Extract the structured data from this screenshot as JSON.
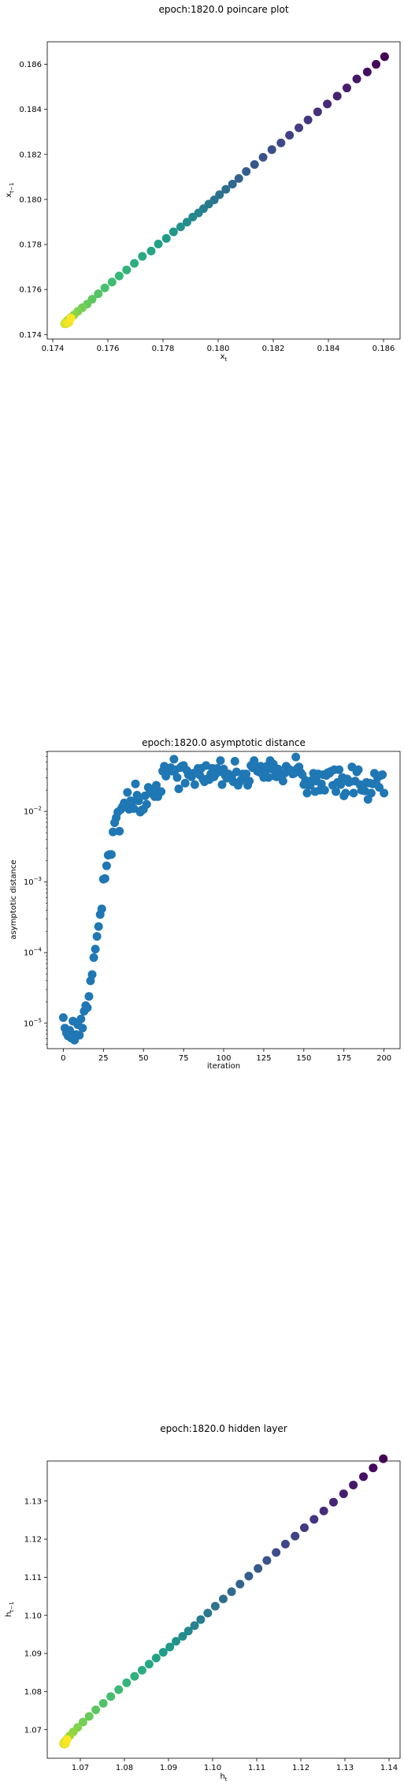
{
  "chart_data": [
    {
      "type": "scatter",
      "title": "epoch:1820.0 poincare plot",
      "xlabel": "x_t",
      "ylabel": "x_{t-1}",
      "xlim": [
        0.1738,
        0.1866
      ],
      "ylim": [
        0.1738,
        0.187
      ],
      "xticks": [
        "0.174",
        "0.176",
        "0.178",
        "0.180",
        "0.182",
        "0.184",
        "0.186"
      ],
      "yticks": [
        "0.174",
        "0.176",
        "0.178",
        "0.180",
        "0.182",
        "0.184",
        "0.186"
      ],
      "color_scale": "viridis (early iterations dark purple, late iterations yellow)",
      "series": [
        {
          "x": [
            0.18604,
            0.18573,
            0.18541,
            0.18503,
            0.18467,
            0.18432,
            0.18396,
            0.18361,
            0.18326,
            0.18293,
            0.18259,
            0.18228,
            0.18195,
            0.18163,
            0.18132,
            0.18102,
            0.18075,
            0.18052,
            0.18028,
            0.18005,
            0.17986,
            0.17966,
            0.17947,
            0.17929,
            0.17908,
            0.17887,
            0.17864,
            0.17838,
            0.17812,
            0.17783,
            0.17757,
            0.17725,
            0.17696,
            0.17668,
            0.17641,
            0.17615,
            0.17589,
            0.17565,
            0.17543,
            0.17525,
            0.17507,
            0.17491,
            0.17477,
            0.17465,
            0.17456,
            0.17449,
            0.17445,
            0.17443,
            0.17447,
            0.17453,
            0.17459,
            0.17466
          ],
          "y": [
            0.18634,
            0.186,
            0.18566,
            0.18535,
            0.18495,
            0.18459,
            0.18424,
            0.18389,
            0.18353,
            0.18318,
            0.18285,
            0.18251,
            0.18221,
            0.18187,
            0.18155,
            0.18124,
            0.18093,
            0.18068,
            0.18045,
            0.18021,
            0.17998,
            0.17979,
            0.17959,
            0.1794,
            0.17922,
            0.17899,
            0.17878,
            0.17856,
            0.17827,
            0.17802,
            0.17771,
            0.17747,
            0.17716,
            0.17687,
            0.1766,
            0.17633,
            0.17607,
            0.17581,
            0.17557,
            0.17535,
            0.17519,
            0.17503,
            0.17487,
            0.17475,
            0.17465,
            0.17457,
            0.17451,
            0.17448,
            0.17448,
            0.17451,
            0.17454,
            0.17473
          ]
        }
      ]
    },
    {
      "type": "scatter",
      "title": "epoch:1820.0 asymptotic distance",
      "xlabel": "iteration",
      "ylabel": "asymptotic distance",
      "yscale": "log",
      "xlim": [
        -10,
        210
      ],
      "ylim_log10": [
        -5.36,
        -1.15
      ],
      "xticks": [
        "0",
        "25",
        "50",
        "75",
        "100",
        "125",
        "150",
        "175",
        "200"
      ],
      "yticks": [
        "10^-5",
        "10^-4",
        "10^-3",
        "10^-2"
      ],
      "color": "#1f77b4",
      "series": [
        {
          "x": [
            0,
            1,
            2,
            3,
            4,
            5,
            6,
            7,
            8,
            9,
            10,
            11,
            12,
            13,
            14,
            15,
            16,
            17,
            18,
            19,
            20,
            21,
            22,
            23,
            24,
            25,
            26,
            27,
            28,
            29,
            30,
            31,
            32,
            33,
            34,
            35,
            36,
            37,
            38,
            39,
            40,
            41,
            42,
            43,
            44,
            45,
            46,
            47,
            48,
            49,
            50,
            51,
            52,
            53,
            54,
            55,
            56,
            57,
            58,
            59,
            60,
            61,
            62,
            63,
            64,
            65,
            66,
            67,
            68,
            69,
            70,
            71,
            72,
            73,
            74,
            75,
            76,
            77,
            78,
            79,
            80,
            81,
            82,
            83,
            84,
            85,
            86,
            87,
            88,
            89,
            90,
            91,
            92,
            93,
            94,
            95,
            96,
            97,
            98,
            99,
            100,
            101,
            102,
            103,
            104,
            105,
            106,
            107,
            108,
            109,
            110,
            111,
            112,
            113,
            114,
            115,
            116,
            117,
            118,
            119,
            120,
            121,
            122,
            123,
            124,
            125,
            126,
            127,
            128,
            129,
            130,
            131,
            132,
            133,
            134,
            135,
            136,
            137,
            138,
            139,
            140,
            141,
            142,
            143,
            144,
            145,
            146,
            147,
            148,
            149,
            150,
            151,
            152,
            153,
            154,
            155,
            156,
            157,
            158,
            159,
            160,
            161,
            162,
            163,
            164,
            165,
            166,
            167,
            168,
            169,
            170,
            171,
            172,
            173,
            174,
            175,
            176,
            177,
            178,
            179,
            180,
            181,
            182,
            183,
            184,
            185,
            186,
            187,
            188,
            189,
            190,
            191,
            192,
            193,
            194,
            195,
            196,
            197,
            198,
            199,
            200
          ],
          "log10_y": [
            -4.92,
            -5.07,
            -5.14,
            -5.18,
            -5.1,
            -5.21,
            -4.97,
            -5.24,
            -5.16,
            -5.02,
            -5.17,
            -4.94,
            -5.07,
            -4.83,
            -4.75,
            -4.78,
            -4.62,
            -4.4,
            -4.31,
            -4.07,
            -3.95,
            -3.77,
            -3.63,
            -3.46,
            -3.38,
            -2.96,
            -2.95,
            -2.77,
            -2.62,
            -2.61,
            -2.61,
            -2.29,
            -2.16,
            -2.09,
            -2.01,
            -2.28,
            -1.97,
            -1.93,
            -1.88,
            -1.92,
            -1.73,
            -1.97,
            -1.85,
            -1.86,
            -1.96,
            -1.61,
            -1.77,
            -1.85,
            -2.01,
            -1.98,
            -1.97,
            -1.78,
            -1.9,
            -1.66,
            -1.74,
            -1.73,
            -1.7,
            -1.79,
            -1.63,
            -1.79,
            -1.73,
            -1.72,
            -1.43,
            -1.36,
            -1.5,
            -1.4,
            -1.42,
            -1.38,
            -1.43,
            -1.26,
            -1.41,
            -1.52,
            -1.68,
            -1.38,
            -1.36,
            -1.35,
            -1.6,
            -1.42,
            -1.48,
            -1.48,
            -1.51,
            -1.46,
            -1.62,
            -1.45,
            -1.39,
            -1.48,
            -1.39,
            -1.54,
            -1.58,
            -1.35,
            -1.54,
            -1.55,
            -1.47,
            -1.39,
            -1.51,
            -1.47,
            -1.39,
            -1.44,
            -1.28,
            -1.62,
            -1.4,
            -1.49,
            -1.53,
            -1.47,
            -1.49,
            -1.52,
            -1.58,
            -1.29,
            -1.44,
            -1.63,
            -1.58,
            -1.55,
            -1.47,
            -1.49,
            -1.47,
            -1.63,
            -1.57,
            -1.35,
            -1.38,
            -1.28,
            -1.36,
            -1.43,
            -1.44,
            -1.36,
            -1.47,
            -1.52,
            -1.43,
            -1.36,
            -1.52,
            -1.28,
            -1.4,
            -1.33,
            -1.5,
            -1.51,
            -1.4,
            -1.45,
            -1.47,
            -1.57,
            -1.46,
            -1.36,
            -1.39,
            -1.41,
            -1.42,
            -1.47,
            -1.46,
            -1.23,
            -1.39,
            -1.37,
            -1.45,
            -1.48,
            -1.62,
            -1.56,
            -1.74,
            -1.63,
            -1.63,
            -1.56,
            -1.46,
            -1.72,
            -1.57,
            -1.47,
            -1.7,
            -1.61,
            -1.48,
            -1.7,
            -1.49,
            -1.45,
            -1.46,
            -1.43,
            -1.63,
            -1.41,
            -1.72,
            -1.59,
            -1.41,
            -1.62,
            -1.52,
            -1.78,
            -1.74,
            -1.54,
            -1.59,
            -1.58,
            -1.37,
            -1.74,
            -1.57,
            -1.44,
            -1.41,
            -1.62,
            -1.7,
            -1.63,
            -1.71,
            -1.59,
            -1.83,
            -1.6,
            -1.74,
            -1.61,
            -1.46,
            -1.6,
            -1.52,
            -1.66,
            -1.49,
            -1.48,
            -1.74,
            -1.42,
            -1.46,
            -1.5,
            -1.68
          ]
        }
      ]
    },
    {
      "type": "scatter",
      "title": "epoch:1820.0 hidden layer",
      "xlabel": "h_t",
      "ylabel": "h_{t-1}",
      "xlim": [
        1.0625,
        1.1425
      ],
      "ylim": [
        1.0625,
        1.1405
      ],
      "xticks": [
        "1.07",
        "1.08",
        "1.09",
        "1.10",
        "1.11",
        "1.12",
        "1.13",
        "1.14"
      ],
      "yticks": [
        "1.07",
        "1.08",
        "1.09",
        "1.10",
        "1.11",
        "1.12",
        "1.13"
      ],
      "color_scale": "viridis (early iterations dark purple, late iterations yellow)",
      "series": [
        {
          "x": [
            1.1387,
            1.1364,
            1.1342,
            1.1319,
            1.1297,
            1.1274,
            1.1252,
            1.123,
            1.1208,
            1.1187,
            1.1165,
            1.1144,
            1.1123,
            1.1103,
            1.1082,
            1.1062,
            1.1043,
            1.1024,
            1.1006,
            1.0989,
            1.0973,
            1.0959,
            1.0945,
            1.0932,
            1.0917,
            1.0903,
            1.0888,
            1.0872,
            1.0856,
            1.084,
            1.0823,
            1.0805,
            1.0787,
            1.0769,
            1.0752,
            1.0735,
            1.072,
            1.0706,
            1.0694,
            1.0684,
            1.0676,
            1.067,
            1.0666,
            1.0663,
            1.0662,
            1.0664,
            1.0667,
            1.067
          ],
          "y": [
            1.1411,
            1.1387,
            1.1364,
            1.1342,
            1.1319,
            1.1297,
            1.1274,
            1.1252,
            1.123,
            1.1208,
            1.1187,
            1.1165,
            1.1144,
            1.1123,
            1.1103,
            1.1082,
            1.1062,
            1.1043,
            1.1024,
            1.1006,
            1.0989,
            1.0973,
            1.0959,
            1.0945,
            1.0932,
            1.0917,
            1.0903,
            1.0888,
            1.0872,
            1.0856,
            1.084,
            1.0823,
            1.0805,
            1.0787,
            1.0769,
            1.0752,
            1.0735,
            1.072,
            1.0706,
            1.0694,
            1.0684,
            1.0676,
            1.067,
            1.0666,
            1.0663,
            1.0662,
            1.0664,
            1.0674
          ]
        }
      ]
    }
  ]
}
